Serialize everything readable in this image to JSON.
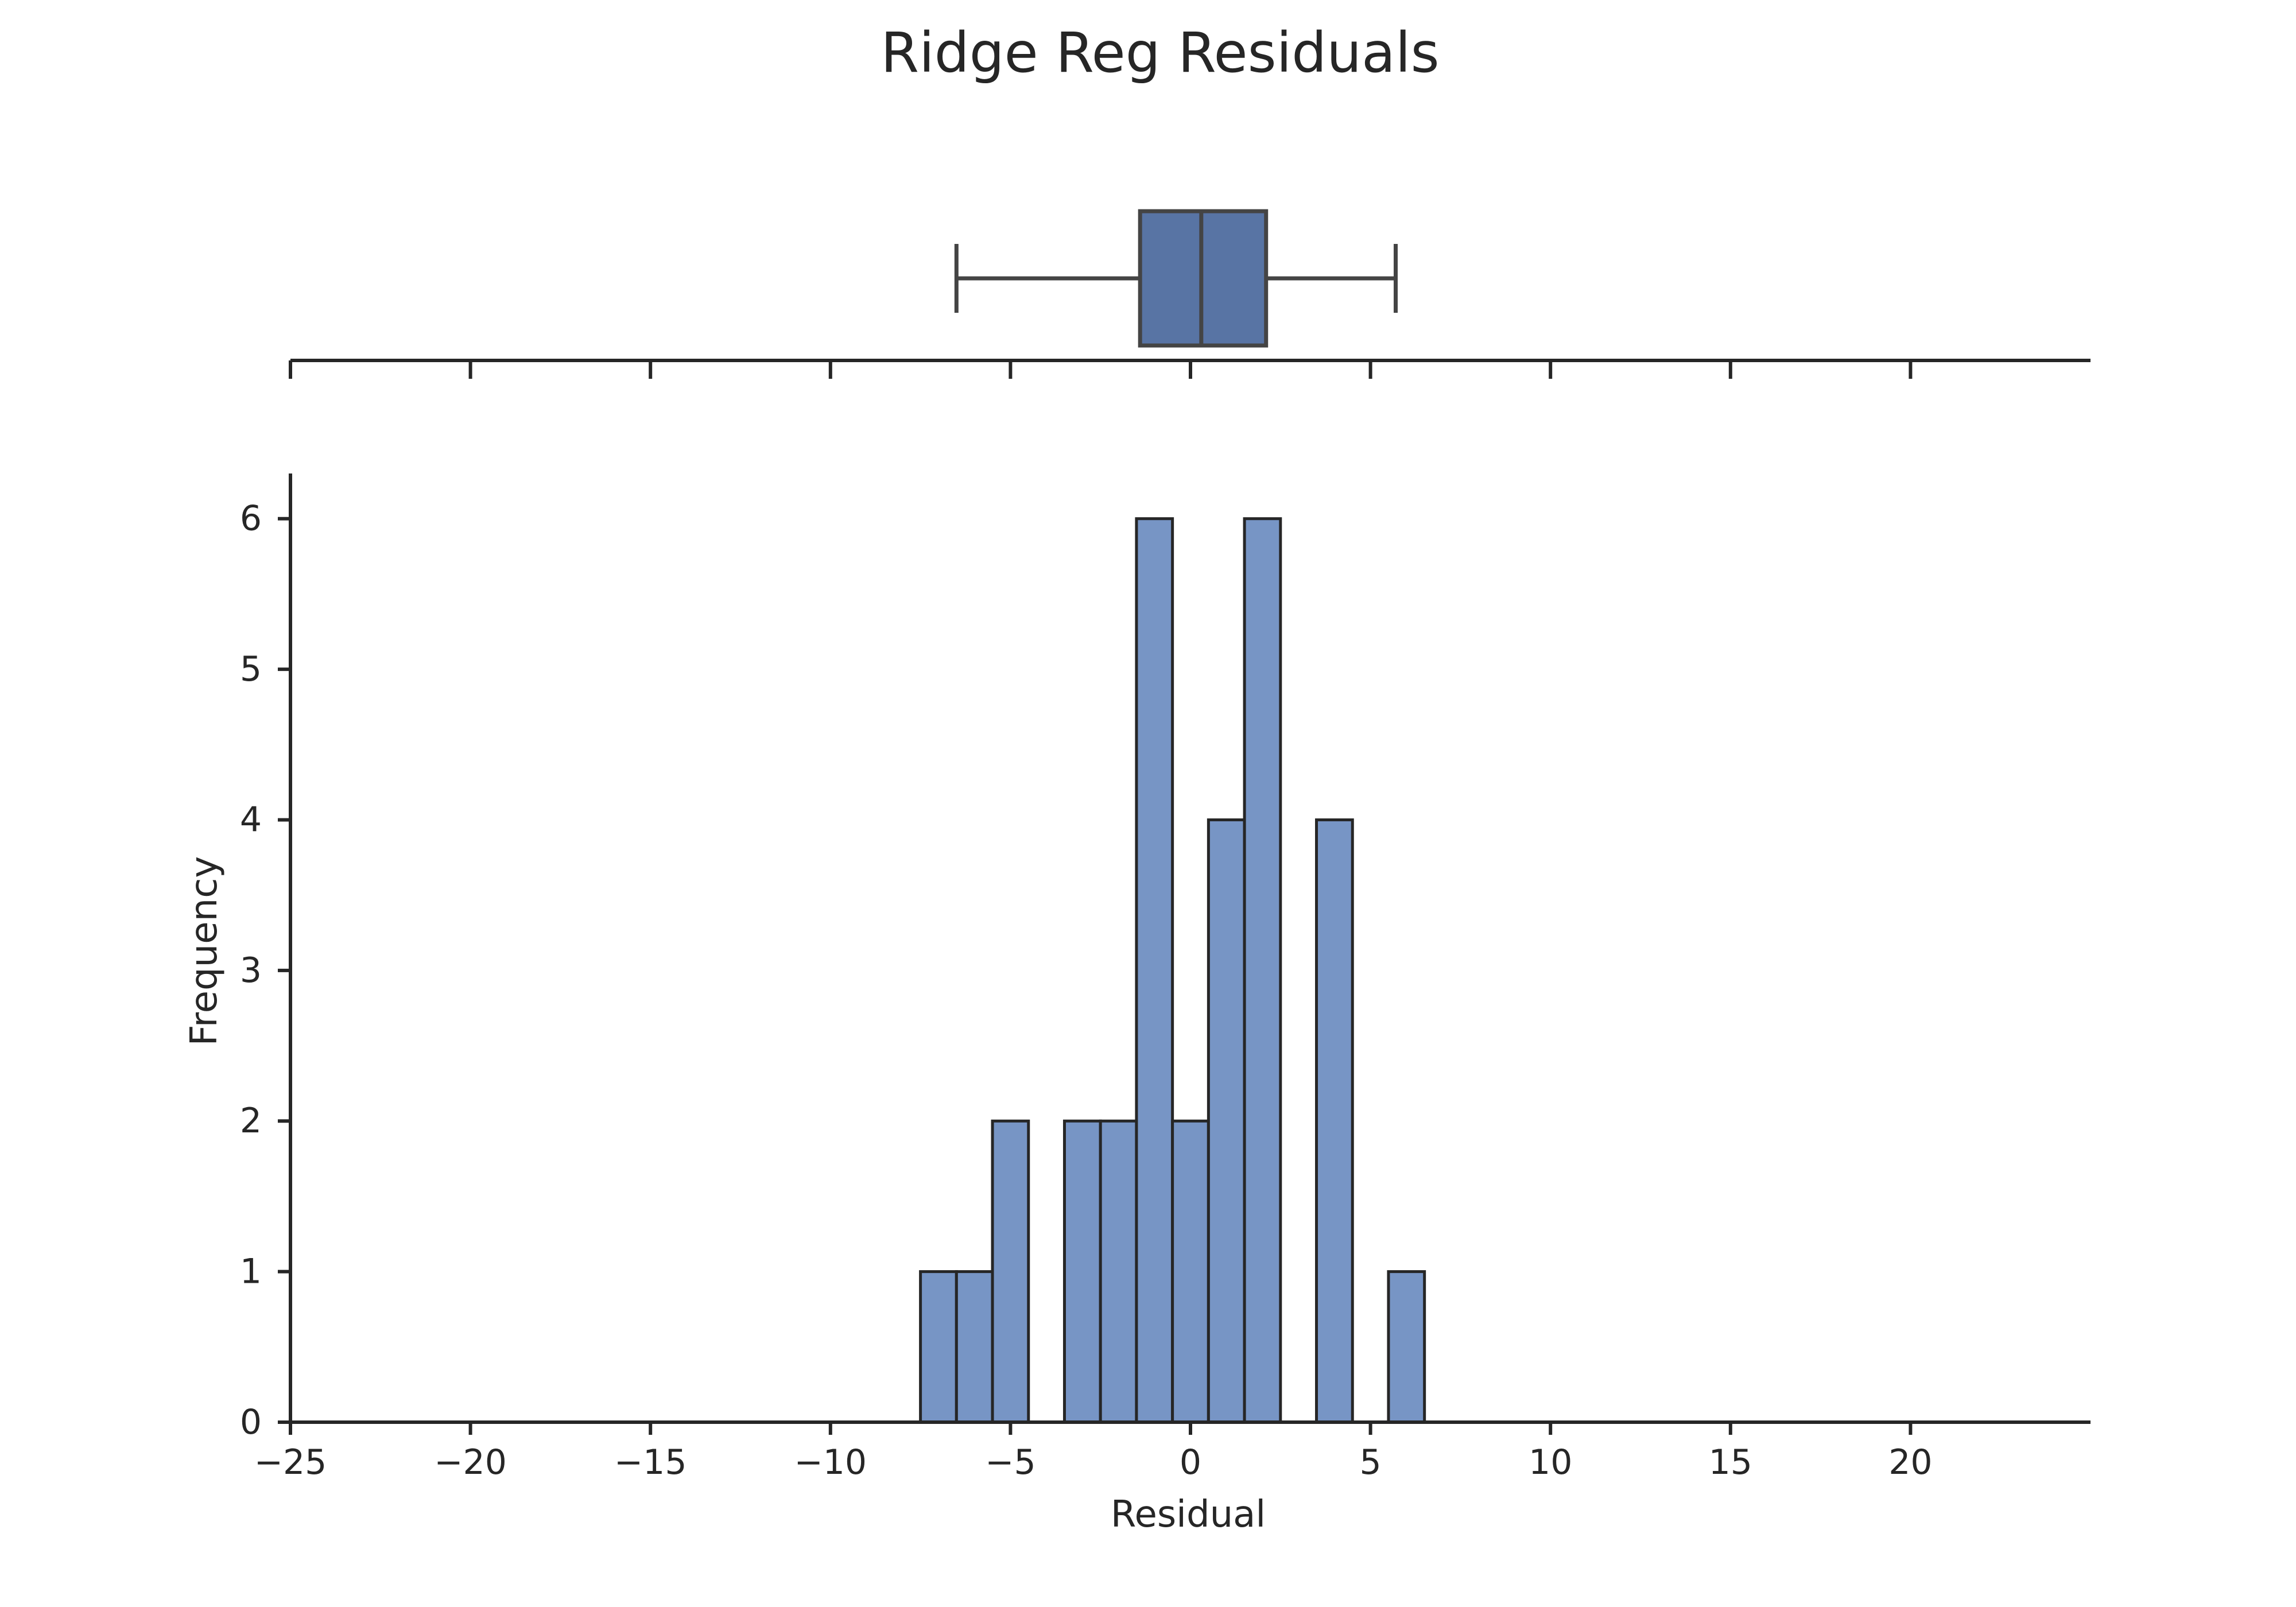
{
  "chart_data": {
    "type": "histogram",
    "title": "Ridge Reg Residuals",
    "xlabel": "Residual",
    "ylabel": "Frequency",
    "xlim": [
      -25,
      25
    ],
    "ylim": [
      0,
      6.3
    ],
    "xticks": [
      -25,
      -20,
      -15,
      -10,
      -5,
      0,
      5,
      10,
      15,
      20
    ],
    "xtick_labels": [
      "−25",
      "−20",
      "−15",
      "−10",
      "−5",
      "0",
      "5",
      "10",
      "15",
      "20"
    ],
    "yticks": [
      0,
      1,
      2,
      3,
      4,
      5,
      6
    ],
    "ytick_labels": [
      "0",
      "1",
      "2",
      "3",
      "4",
      "5",
      "6"
    ],
    "bin_width": 1.0,
    "bins": [
      {
        "left": -7.5,
        "count": 1
      },
      {
        "left": -6.5,
        "count": 1
      },
      {
        "left": -5.5,
        "count": 2
      },
      {
        "left": -4.5,
        "count": 0
      },
      {
        "left": -3.5,
        "count": 2
      },
      {
        "left": -2.5,
        "count": 2
      },
      {
        "left": -1.5,
        "count": 6
      },
      {
        "left": -0.5,
        "count": 2
      },
      {
        "left": 0.5,
        "count": 4
      },
      {
        "left": 1.5,
        "count": 6
      },
      {
        "left": 2.5,
        "count": 0
      },
      {
        "left": 3.5,
        "count": 4
      },
      {
        "left": 4.5,
        "count": 0
      },
      {
        "left": 5.5,
        "count": 1
      }
    ],
    "boxplot": {
      "whisker_low": -6.5,
      "q1": -1.4,
      "median": 0.3,
      "q3": 2.1,
      "whisker_high": 5.7
    },
    "colors": {
      "bar_fill": "#7795c5",
      "box_fill": "#5874a4",
      "edge": "#262626"
    },
    "grid": false,
    "legend": "none"
  }
}
